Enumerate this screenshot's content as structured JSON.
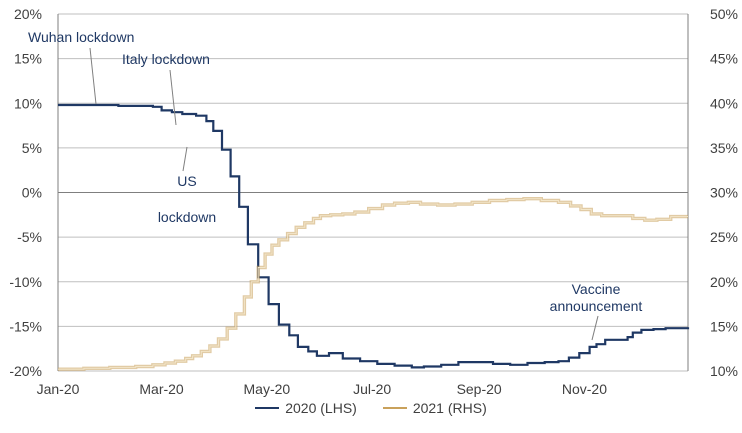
{
  "chart_data": {
    "type": "line",
    "x_ticks": [
      "Jan-20",
      "Mar-20",
      "May-20",
      "Jul-20",
      "Sep-20",
      "Nov-20"
    ],
    "y_left_ticks": [
      "20%",
      "15%",
      "10%",
      "5%",
      "0%",
      "-5%",
      "-10%",
      "-15%",
      "-20%"
    ],
    "y_right_ticks": [
      "50%",
      "45%",
      "40%",
      "35%",
      "30%",
      "25%",
      "20%",
      "15%",
      "10%"
    ],
    "y_left_range": [
      -20,
      20
    ],
    "y_right_range": [
      10,
      50
    ],
    "grid": true,
    "legend_position": "bottom",
    "series": [
      {
        "name": "2020 (LHS)",
        "axis": "left",
        "color": "#1f3864",
        "points": [
          [
            0,
            9.8
          ],
          [
            18,
            9.8
          ],
          [
            35,
            9.7
          ],
          [
            55,
            9.6
          ],
          [
            60,
            9.2
          ],
          [
            66,
            9.0
          ],
          [
            72,
            8.8
          ],
          [
            80,
            8.6
          ],
          [
            86,
            8.0
          ],
          [
            90,
            6.9
          ],
          [
            95,
            4.8
          ],
          [
            100,
            1.8
          ],
          [
            105,
            -1.6
          ],
          [
            110,
            -5.8
          ],
          [
            116,
            -9.5
          ],
          [
            122,
            -12.5
          ],
          [
            128,
            -14.8
          ],
          [
            134,
            -16.0
          ],
          [
            139,
            -17.3
          ],
          [
            145,
            -17.8
          ],
          [
            150,
            -18.3
          ],
          [
            157,
            -18.0
          ],
          [
            165,
            -18.6
          ],
          [
            175,
            -18.9
          ],
          [
            185,
            -19.2
          ],
          [
            195,
            -19.4
          ],
          [
            205,
            -19.6
          ],
          [
            212,
            -19.5
          ],
          [
            222,
            -19.3
          ],
          [
            232,
            -19.0
          ],
          [
            242,
            -19.0
          ],
          [
            252,
            -19.2
          ],
          [
            262,
            -19.3
          ],
          [
            272,
            -19.1
          ],
          [
            282,
            -19.0
          ],
          [
            290,
            -18.9
          ],
          [
            296,
            -18.5
          ],
          [
            302,
            -18.0
          ],
          [
            308,
            -17.3
          ],
          [
            312,
            -17.0
          ],
          [
            317,
            -16.5
          ],
          [
            330,
            -16.2
          ],
          [
            333,
            -15.7
          ],
          [
            338,
            -15.4
          ],
          [
            345,
            -15.3
          ],
          [
            352,
            -15.2
          ],
          [
            365,
            -15.1
          ]
        ]
      },
      {
        "name": "2021 (RHS)",
        "axis": "right",
        "color": "#c9a15b",
        "points": [
          [
            0,
            10.2
          ],
          [
            15,
            10.3
          ],
          [
            30,
            10.4
          ],
          [
            45,
            10.5
          ],
          [
            55,
            10.7
          ],
          [
            62,
            10.9
          ],
          [
            68,
            11.1
          ],
          [
            74,
            11.4
          ],
          [
            78,
            11.7
          ],
          [
            83,
            12.2
          ],
          [
            88,
            12.8
          ],
          [
            93,
            13.6
          ],
          [
            98,
            14.8
          ],
          [
            103,
            16.4
          ],
          [
            108,
            18.3
          ],
          [
            112,
            20.0
          ],
          [
            116,
            21.6
          ],
          [
            120,
            23.1
          ],
          [
            124,
            24.1
          ],
          [
            128,
            24.7
          ],
          [
            133,
            25.4
          ],
          [
            138,
            26.1
          ],
          [
            143,
            26.6
          ],
          [
            148,
            27.1
          ],
          [
            152,
            27.4
          ],
          [
            158,
            27.5
          ],
          [
            165,
            27.6
          ],
          [
            172,
            27.8
          ],
          [
            180,
            28.2
          ],
          [
            188,
            28.6
          ],
          [
            195,
            28.8
          ],
          [
            203,
            28.9
          ],
          [
            210,
            28.7
          ],
          [
            220,
            28.6
          ],
          [
            230,
            28.7
          ],
          [
            240,
            28.9
          ],
          [
            250,
            29.1
          ],
          [
            260,
            29.2
          ],
          [
            270,
            29.3
          ],
          [
            280,
            29.1
          ],
          [
            290,
            28.9
          ],
          [
            297,
            28.5
          ],
          [
            303,
            28.1
          ],
          [
            309,
            27.6
          ],
          [
            315,
            27.4
          ],
          [
            325,
            27.4
          ],
          [
            333,
            27.1
          ],
          [
            340,
            26.9
          ],
          [
            347,
            27.0
          ],
          [
            355,
            27.3
          ],
          [
            365,
            27.3
          ]
        ]
      }
    ],
    "annotations": {
      "wuhan": "Wuhan lockdown",
      "italy": "Italy lockdown",
      "us_line1": "US",
      "us_line2": "lockdown",
      "vaccine_line1": "Vaccine",
      "vaccine_line2": "announcement"
    },
    "annotation_color": "#1f3864",
    "grid_color": "#bfbfbf",
    "axis_color": "#7f7f7f"
  }
}
